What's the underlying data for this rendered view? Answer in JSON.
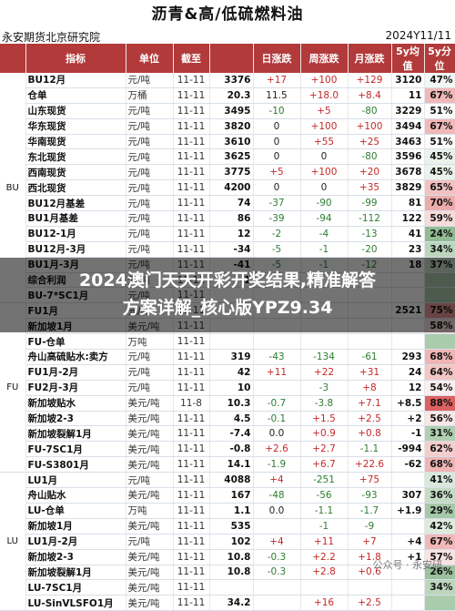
{
  "title": "沥青&高/低硫燃料油",
  "source": "永安期货北京研究院",
  "date": "2024Y11/11",
  "headers": [
    "指标",
    "单位",
    "截至",
    "日涨跌",
    "周涨跌",
    "月涨跌",
    "5y均值",
    "5y分位"
  ],
  "overlay": {
    "line1": "2024澳门天天开彩开奖结果,精准解答",
    "line2": "方案详解_核心版YPZ9.34"
  },
  "watermark": "公众号 · 永安研",
  "groups": [
    {
      "label": "BU",
      "rows": [
        {
          "name": "BU12月",
          "unit": "元/吨",
          "date": "11-11",
          "price": "3376",
          "d": "+17",
          "w": "+100",
          "m": "+129",
          "avg": "3120",
          "pct": "47%",
          "pct_val": 0.47
        },
        {
          "name": "仓单",
          "unit": "万桶",
          "date": "11-11",
          "price": "20.3",
          "d": "11.5",
          "w": "+18.0",
          "m": "+8.4",
          "avg": "11",
          "pct": "67%",
          "pct_val": 0.67
        },
        {
          "name": "山东现货",
          "unit": "元/吨",
          "date": "11-11",
          "price": "3495",
          "d": "-10",
          "w": "+5",
          "m": "-80",
          "avg": "3229",
          "pct": "51%",
          "pct_val": 0.51
        },
        {
          "name": "华东现货",
          "unit": "元/吨",
          "date": "11-11",
          "price": "3820",
          "d": "0",
          "w": "+100",
          "m": "+100",
          "avg": "3494",
          "pct": "67%",
          "pct_val": 0.67
        },
        {
          "name": "华南现货",
          "unit": "元/吨",
          "date": "11-11",
          "price": "3610",
          "d": "0",
          "w": "+55",
          "m": "+25",
          "avg": "3463",
          "pct": "51%",
          "pct_val": 0.51
        },
        {
          "name": "东北现货",
          "unit": "元/吨",
          "date": "11-11",
          "price": "3625",
          "d": "0",
          "w": "0",
          "m": "-80",
          "avg": "3596",
          "pct": "45%",
          "pct_val": 0.45
        },
        {
          "name": "西南现货",
          "unit": "元/吨",
          "date": "11-11",
          "price": "3775",
          "d": "+5",
          "w": "+100",
          "m": "+20",
          "avg": "3678",
          "pct": "45%",
          "pct_val": 0.45
        },
        {
          "name": "西北现货",
          "unit": "元/吨",
          "date": "11-11",
          "price": "4200",
          "d": "0",
          "w": "0",
          "m": "+35",
          "avg": "3829",
          "pct": "65%",
          "pct_val": 0.65
        },
        {
          "name": "BU12月基差",
          "unit": "元/吨",
          "date": "11-11",
          "price": "74",
          "d": "-37",
          "w": "-90",
          "m": "-99",
          "avg": "81",
          "pct": "70%",
          "pct_val": 0.7
        },
        {
          "name": "BU1月基差",
          "unit": "元/吨",
          "date": "11-11",
          "price": "86",
          "d": "-39",
          "w": "-94",
          "m": "-112",
          "avg": "122",
          "pct": "59%",
          "pct_val": 0.59
        },
        {
          "name": "BU12-1月",
          "unit": "元/吨",
          "date": "11-11",
          "price": "12",
          "d": "-2",
          "w": "-4",
          "m": "-13",
          "avg": "41",
          "pct": "24%",
          "pct_val": 0.24
        },
        {
          "name": "BU12月-3月",
          "unit": "元/吨",
          "date": "11-11",
          "price": "-34",
          "d": "-5",
          "w": "-1",
          "m": "-20",
          "avg": "23",
          "pct": "34%",
          "pct_val": 0.34
        },
        {
          "name": "BU1月-3月",
          "unit": "元/吨",
          "date": "11-11",
          "price": "-41",
          "d": "-5",
          "w": "-1",
          "m": "-12",
          "avg": "18",
          "pct": "37%",
          "pct_val": 0.37
        },
        {
          "name": "综合利润",
          "unit": "元/吨",
          "date": "11-11",
          "price": "-1",
          "d": "",
          "w": "",
          "m": "",
          "avg": "",
          "pct": "",
          "pct_val": 0.3
        },
        {
          "name": "BU-7*SC1月",
          "unit": "元/吨",
          "date": "11-11",
          "price": "",
          "d": "",
          "w": "",
          "m": "",
          "avg": "",
          "pct": "",
          "pct_val": 0.3
        }
      ]
    },
    {
      "label": "FU",
      "rows": [
        {
          "name": "FU1月",
          "unit": "元/吨",
          "date": "11-11",
          "price": "",
          "d": "",
          "w": "",
          "m": "",
          "avg": "2521",
          "pct": "75%",
          "pct_val": 0.75
        },
        {
          "name": "新加坡1月",
          "unit": "美元/吨",
          "date": "11-11",
          "price": "",
          "d": "",
          "w": "",
          "m": "",
          "avg": "",
          "pct": "58%",
          "pct_val": 0.58
        },
        {
          "name": "FU-仓单",
          "unit": "万吨",
          "date": "11-11",
          "price": "",
          "d": "",
          "w": "",
          "m": "",
          "avg": "",
          "pct": "",
          "pct_val": 0.3
        },
        {
          "name": "舟山高硫贴水:卖方",
          "unit": "元/吨",
          "date": "11-11",
          "price": "319",
          "d": "-43",
          "w": "-134",
          "m": "-61",
          "avg": "293",
          "pct": "68%",
          "pct_val": 0.68
        },
        {
          "name": "FU1月-2月",
          "unit": "元/吨",
          "date": "11-11",
          "price": "42",
          "d": "+11",
          "w": "+22",
          "m": "+31",
          "avg": "24",
          "pct": "64%",
          "pct_val": 0.64
        },
        {
          "name": "FU2月-3月",
          "unit": "元/吨",
          "date": "11-11",
          "price": "10",
          "d": "",
          "w": "-3",
          "m": "+8",
          "avg": "12",
          "pct": "54%",
          "pct_val": 0.54
        },
        {
          "name": "新加坡贴水",
          "unit": "美元/吨",
          "date": "11-8",
          "price": "10.3",
          "d": "-0.7",
          "w": "-3.8",
          "m": "+7.1",
          "avg": "+8.5",
          "pct": "88%",
          "pct_val": 0.88
        },
        {
          "name": "新加坡2-3",
          "unit": "美元/吨",
          "date": "11-11",
          "price": "4.5",
          "d": "-0.1",
          "w": "+1.5",
          "m": "+2.5",
          "avg": "+2",
          "pct": "56%",
          "pct_val": 0.56
        },
        {
          "name": "新加坡裂解1月",
          "unit": "美元/吨",
          "date": "11-11",
          "price": "-7.4",
          "d": "0.0",
          "w": "+0.9",
          "m": "+0.8",
          "avg": "-1",
          "pct": "31%",
          "pct_val": 0.31
        },
        {
          "name": "FU-7SC1月",
          "unit": "美元/吨",
          "date": "11-11",
          "price": "-0.8",
          "d": "+2.6",
          "w": "+2.7",
          "m": "-1.1",
          "avg": "-994",
          "pct": "62%",
          "pct_val": 0.62
        },
        {
          "name": "FU-S3801月",
          "unit": "美元/吨",
          "date": "11-11",
          "price": "14.1",
          "d": "-1.9",
          "w": "+6.7",
          "m": "+22.6",
          "avg": "-62",
          "pct": "68%",
          "pct_val": 0.68
        }
      ]
    },
    {
      "label": "LU",
      "rows": [
        {
          "name": "LU1月",
          "unit": "元/吨",
          "date": "11-11",
          "price": "4088",
          "d": "+4",
          "w": "-251",
          "m": "+75",
          "avg": "",
          "pct": "41%",
          "pct_val": 0.41
        },
        {
          "name": "舟山贴水",
          "unit": "美元/吨",
          "date": "11-11",
          "price": "167",
          "d": "-48",
          "w": "-56",
          "m": "-93",
          "avg": "307",
          "pct": "36%",
          "pct_val": 0.36
        },
        {
          "name": "LU-仓单",
          "unit": "万吨",
          "date": "11-11",
          "price": "1.1",
          "d": "0.0",
          "w": "-1.1",
          "m": "-1.7",
          "avg": "+1.9",
          "pct": "29%",
          "pct_val": 0.29
        },
        {
          "name": "新加坡1月",
          "unit": "美元/吨",
          "date": "11-11",
          "price": "535",
          "d": "",
          "w": "-1",
          "m": "-9",
          "avg": "",
          "pct": "42%",
          "pct_val": 0.42
        },
        {
          "name": "LU1月-2月",
          "unit": "元/吨",
          "date": "11-11",
          "price": "102",
          "d": "+4",
          "w": "+11",
          "m": "+7",
          "avg": "+4",
          "pct": "67%",
          "pct_val": 0.67
        },
        {
          "name": "新加坡2-3",
          "unit": "美元/吨",
          "date": "11-11",
          "price": "10.8",
          "d": "-0.3",
          "w": "+2.2",
          "m": "+1.8",
          "avg": "+1",
          "pct": "57%",
          "pct_val": 0.57
        },
        {
          "name": "新加坡裂解1月",
          "unit": "美元/吨",
          "date": "11-11",
          "price": "10.8",
          "d": "-0.3",
          "w": "+2.8",
          "m": "+0.6",
          "avg": "",
          "pct": "26%",
          "pct_val": 0.26
        },
        {
          "name": "LU-7SC1月",
          "unit": "美元/吨",
          "date": "11-11",
          "price": "",
          "d": "",
          "w": "",
          "m": "",
          "avg": "",
          "pct": "34%",
          "pct_val": 0.34
        },
        {
          "name": "LU-SinVLSFO1月",
          "unit": "美元/吨",
          "date": "11-11",
          "price": "34.2",
          "d": "",
          "w": "+16",
          "m": "+2.5",
          "avg": "",
          "pct": "",
          "pct_val": 0.3
        }
      ]
    }
  ],
  "colors": {
    "header": "#b23a3a",
    "up": "#c62828",
    "down": "#2e7d32",
    "pct_low": "#2e7d32",
    "pct_high": "#d32f2f"
  }
}
